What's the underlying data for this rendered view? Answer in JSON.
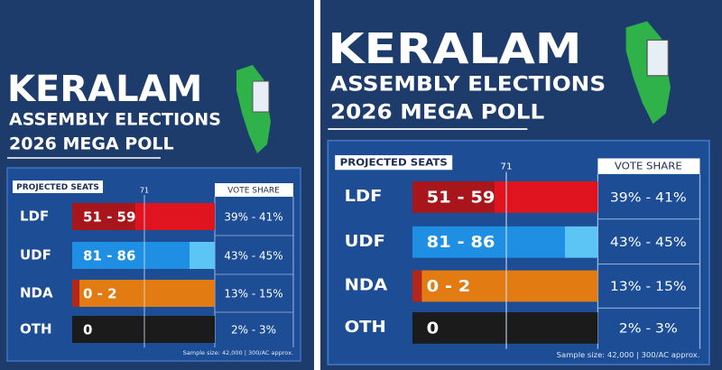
{
  "panels": [
    {
      "title": "KERALAM",
      "subtitle": "ASSEMBLY ELECTIONS",
      "poll": "2026 MEGA POLL",
      "seats_header": "PROJECTED SEATS",
      "majority_mark": "71",
      "vote_header": "VOTE SHARE",
      "rows": [
        {
          "party": "LDF",
          "seats": "51 - 59",
          "vote_share": "39% - 41%"
        },
        {
          "party": "UDF",
          "seats": "81 - 86",
          "vote_share": "43% - 45%"
        },
        {
          "party": "NDA",
          "seats": "0 - 2",
          "vote_share": "13% - 15%"
        },
        {
          "party": "OTH",
          "seats": "0",
          "vote_share": "2% - 3%"
        }
      ],
      "footnote": "Sample size: 42,000 | 300/AC approx."
    },
    {
      "title": "KERALAM",
      "subtitle": "ASSEMBLY ELECTIONS",
      "poll": "2026 MEGA POLL",
      "seats_header": "PROJECTED SEATS",
      "majority_mark": "71",
      "vote_header": "VOTE SHARE",
      "rows": [
        {
          "party": "LDF",
          "seats": "51 - 59",
          "vote_share": "39% - 41%"
        },
        {
          "party": "UDF",
          "seats": "81 - 86",
          "vote_share": "43% - 45%"
        },
        {
          "party": "NDA",
          "seats": "0 - 2",
          "vote_share": "13% - 15%"
        },
        {
          "party": "OTH",
          "seats": "0",
          "vote_share": "2% - 3%"
        }
      ],
      "footnote": "Sample size: 42,000 | 300/AC approx."
    }
  ]
}
